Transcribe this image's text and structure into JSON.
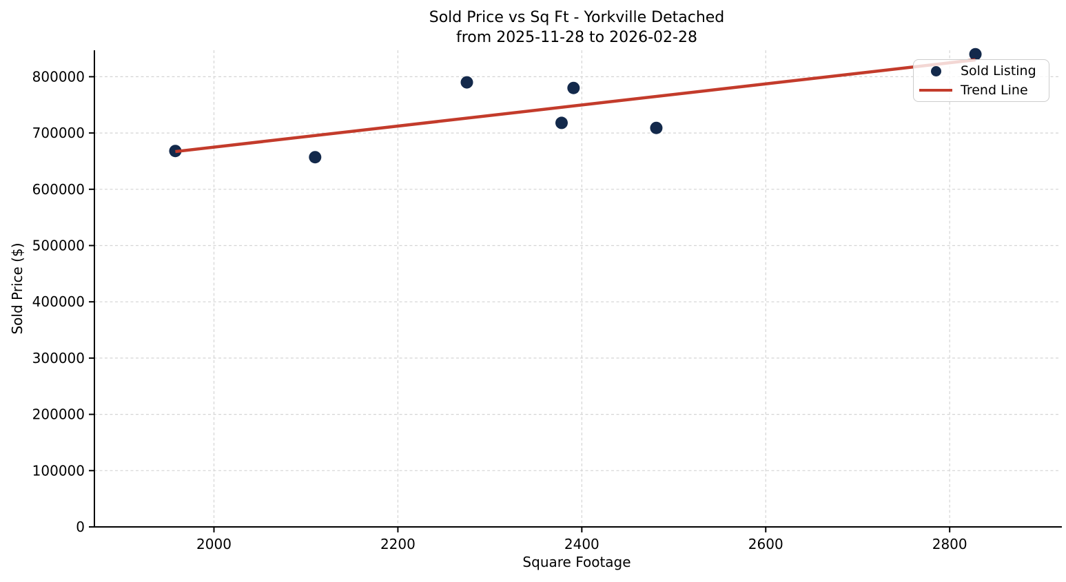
{
  "chart": {
    "title_line1": "Sold Price vs Sq Ft - Yorkville Detached",
    "title_line2": "from 2025-11-28 to 2026-02-28",
    "xlabel": "Square Footage",
    "ylabel": "Sold Price ($)"
  },
  "legend": {
    "items": [
      {
        "label": "Sold Listing",
        "marker": "dot"
      },
      {
        "label": "Trend Line",
        "marker": "line"
      }
    ]
  },
  "chart_data": {
    "type": "scatter",
    "title": "Sold Price vs Sq Ft - Yorkville Detached from 2025-11-28 to 2026-02-28",
    "xlabel": "Square Footage",
    "ylabel": "Sold Price ($)",
    "xlim": [
      1870,
      2919
    ],
    "ylim": [
      0,
      847000
    ],
    "x_ticks": [
      2000,
      2200,
      2400,
      2600,
      2800
    ],
    "y_ticks": [
      0,
      100000,
      200000,
      300000,
      400000,
      500000,
      600000,
      700000,
      800000
    ],
    "grid": true,
    "grid_style": "dashed",
    "legend_position": "upper right",
    "colors": {
      "scatter": "#13294b",
      "trend": "#c33b2b",
      "grid": "#d4d4d4",
      "axis": "#000000"
    },
    "series": [
      {
        "name": "Sold Listing",
        "type": "scatter",
        "points": [
          [
            1958,
            668000
          ],
          [
            2110,
            657000
          ],
          [
            2275,
            790000
          ],
          [
            2378,
            718000
          ],
          [
            2391,
            780000
          ],
          [
            2481,
            709000
          ],
          [
            2828,
            840000
          ]
        ]
      },
      {
        "name": "Trend Line",
        "type": "line",
        "points": [
          [
            1958,
            667000
          ],
          [
            2828,
            830000
          ]
        ]
      }
    ]
  }
}
